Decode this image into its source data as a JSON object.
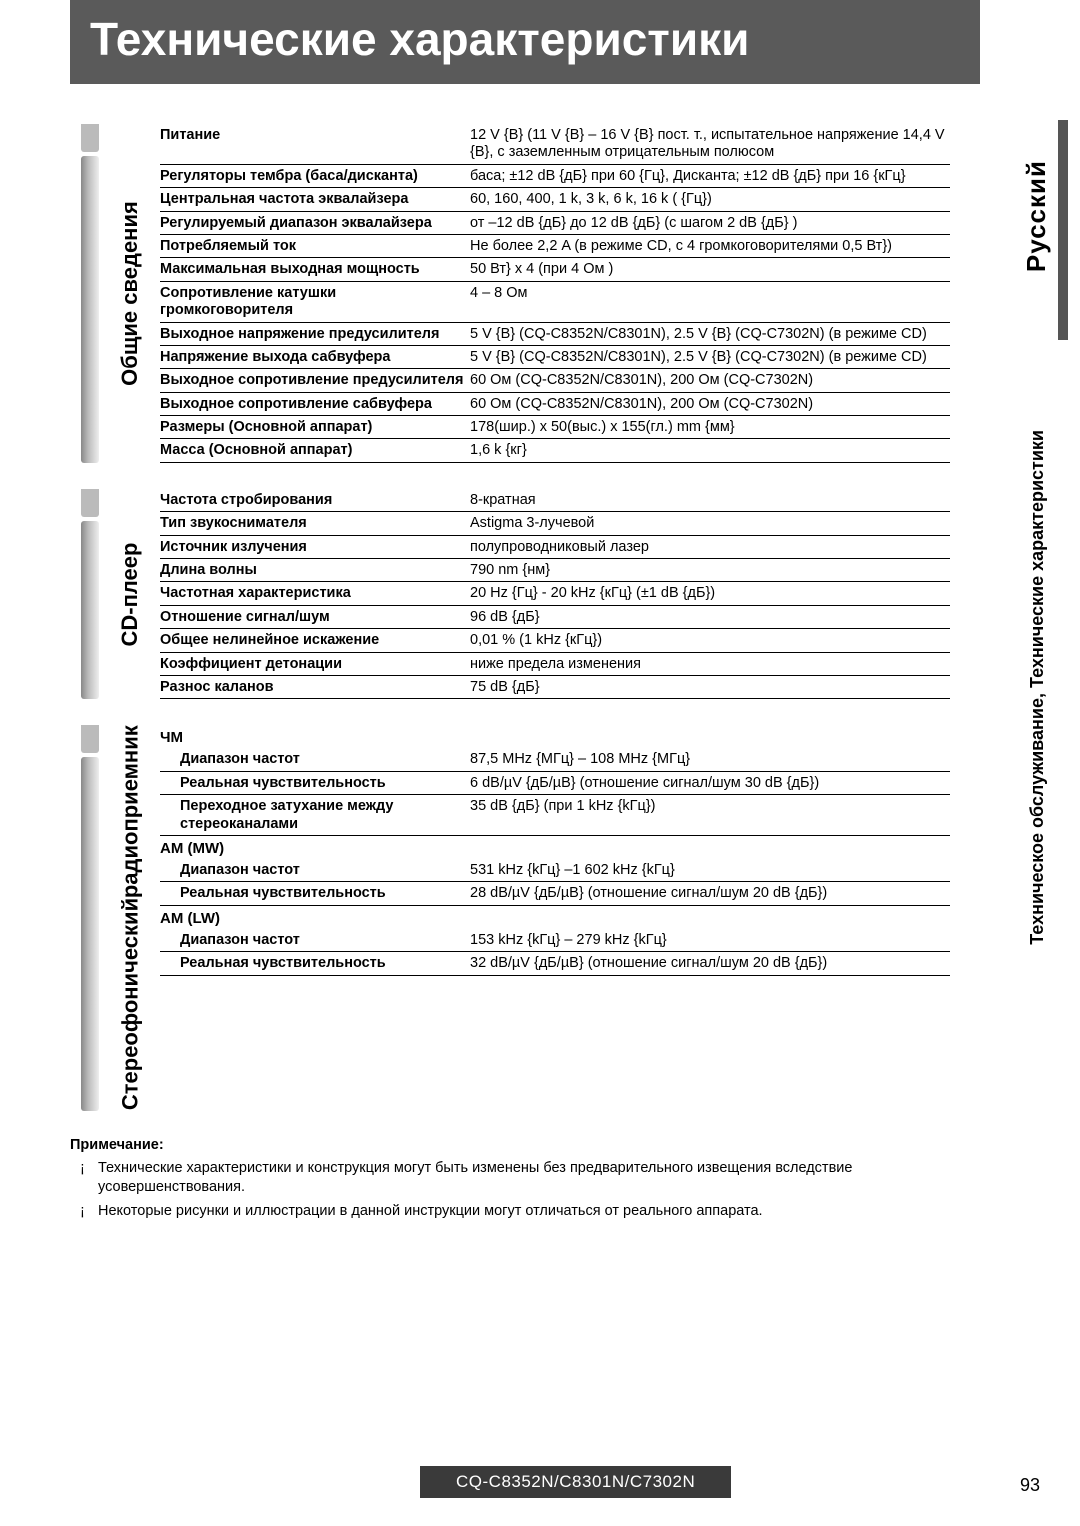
{
  "page_title": "Технические характеристики",
  "side_language": "Русский",
  "side_section": "Техническое обслуживание, Технические характеристики",
  "footer_model": "CQ-C8352N/C8301N/C7302N",
  "page_number": "93",
  "sections": {
    "general": {
      "label": "Общие сведения",
      "rows": [
        {
          "l": "Питание",
          "v": "12 V {В} (11 V {В} – 16 V {В} пост. т., испытательное напряжение 14,4 V {В}, с заземленным отрицательным полюсом"
        },
        {
          "l": "Регуляторы тембра (баса/дисканта)",
          "v": "баса; ±12 dB {дБ} при 60     {Гц}, Дисканта; ±12 dB {дБ} при 16       {кГц}"
        },
        {
          "l": "Центральная частота эквалайзера",
          "v": "60, 160, 400, 1 k, 3 k, 6 k, 16 k (     {Гц})"
        },
        {
          "l": "Регулируемый диапазон эквалайзера",
          "v": "от –12 dB {дБ} до 12 dB {дБ} (с шагом 2 dB {дБ} )"
        },
        {
          "l": "Потребляемый ток",
          "v": "Не более 2,2 A (в режиме CD, с 4 громкоговорителями 0,5       Вт})"
        },
        {
          "l": "Максимальная выходная мощность",
          "v": "50      Вт} x 4 (при 4      Ом )"
        },
        {
          "l": "Сопротивление катушки громкоговорителя",
          "v": "4 – 8      Ом"
        },
        {
          "l": "Выходное напряжение предусилителя",
          "v": "5 V {В} (CQ-C8352N/C8301N), 2.5 V {В} (CQ-C7302N) (в режиме CD)"
        },
        {
          "l": "Напряжение выхода сабвуфера",
          "v": "5 V {В} (CQ-C8352N/C8301N), 2.5 V {В} (CQ-C7302N) (в режиме CD)"
        },
        {
          "l": "Выходное сопротивление предусилителя",
          "v": "60      Ом  (CQ-C8352N/C8301N), 200      Ом  (CQ-C7302N)"
        },
        {
          "l": "Выходное сопротивление сабвуфера",
          "v": "60      Ом  (CQ-C8352N/C8301N), 200      Ом  (CQ-C7302N)"
        },
        {
          "l": "Размеры (Основной аппарат)",
          "v": "178(шир.) x 50(выс.) x 155(гл.) mm {мм}"
        },
        {
          "l": "Масса (Основной аппарат)",
          "v": "1,6 k   {кг}"
        }
      ]
    },
    "cd": {
      "label": "CD-плеер",
      "rows": [
        {
          "l": "Частота стробирования",
          "v": "8-кратная"
        },
        {
          "l": "Тип звукоснимателя",
          "v": "Astigma 3-лучевой"
        },
        {
          "l": "Источник излучения",
          "v": "полупроводниковый лазер"
        },
        {
          "l": "Длина волны",
          "v": "790 nm {нм}"
        },
        {
          "l": "Частотная характеристика",
          "v": "20 Hz {Гц} - 20 kHz {кГц} (±1 dB {дБ})"
        },
        {
          "l": "Отношение сигнал/шум",
          "v": "96 dB {дБ}"
        },
        {
          "l": "Общее нелинейное искажение",
          "v": "0,01 % (1 kHz {кГц})"
        },
        {
          "l": "Коэффициент детонации",
          "v": "ниже предела изменения"
        },
        {
          "l": "Разнос каланов",
          "v": "75 dB {дБ}"
        }
      ]
    },
    "radio": {
      "label": "Стереофонический",
      "label2": "радиоприемник",
      "bands": [
        {
          "head": "ЧМ",
          "rows": [
            {
              "l": "Диапазон частот",
              "v": "87,5 MHz {МГц} – 108 MHz {МГц}"
            },
            {
              "l": "Реальная чувствительность",
              "v": "6 dB/µV {дБ/µВ} (отношение сигнал/шум 30 dB {дБ})"
            },
            {
              "l": "Переходное затухание между стереоканалами",
              "v": "35 dB {дБ} (при 1 kHz {kГц})"
            }
          ]
        },
        {
          "head": "AM (MW)",
          "rows": [
            {
              "l": "Диапазон частот",
              "v": "531 kHz {kГц} –1 602 kHz {kГц}"
            },
            {
              "l": "Реальная чувствительность",
              "v": "28 dB/µV {дБ/µВ} (отношение сигнал/шум 20 dB {дБ})"
            }
          ]
        },
        {
          "head": "AM (LW)",
          "rows": [
            {
              "l": "Диапазон частот",
              "v": "153 kHz {kГц} – 279 kHz {kГц}"
            },
            {
              "l": "Реальная чувствительность",
              "v": "32 dB/µV {дБ/µВ} (отношение сигнал/шум 20 dB {дБ})"
            }
          ]
        }
      ]
    }
  },
  "notes": {
    "title": "Примечание:",
    "items": [
      "Технические характеристики и конструкция могут быть изменены без предварительного извещения вследствие усовершенствования.",
      "Некоторые рисунки и иллюстрации в данной инструкции могут отличаться от реального аппарата."
    ]
  },
  "colors": {
    "banner_bg": "#5a5a5a",
    "banner_fg": "#ffffff",
    "row_border": "#000000",
    "tab_gradient_start": "#888888",
    "tab_gradient_end": "#eeeeee",
    "footer_bg": "#3a3a3a"
  }
}
